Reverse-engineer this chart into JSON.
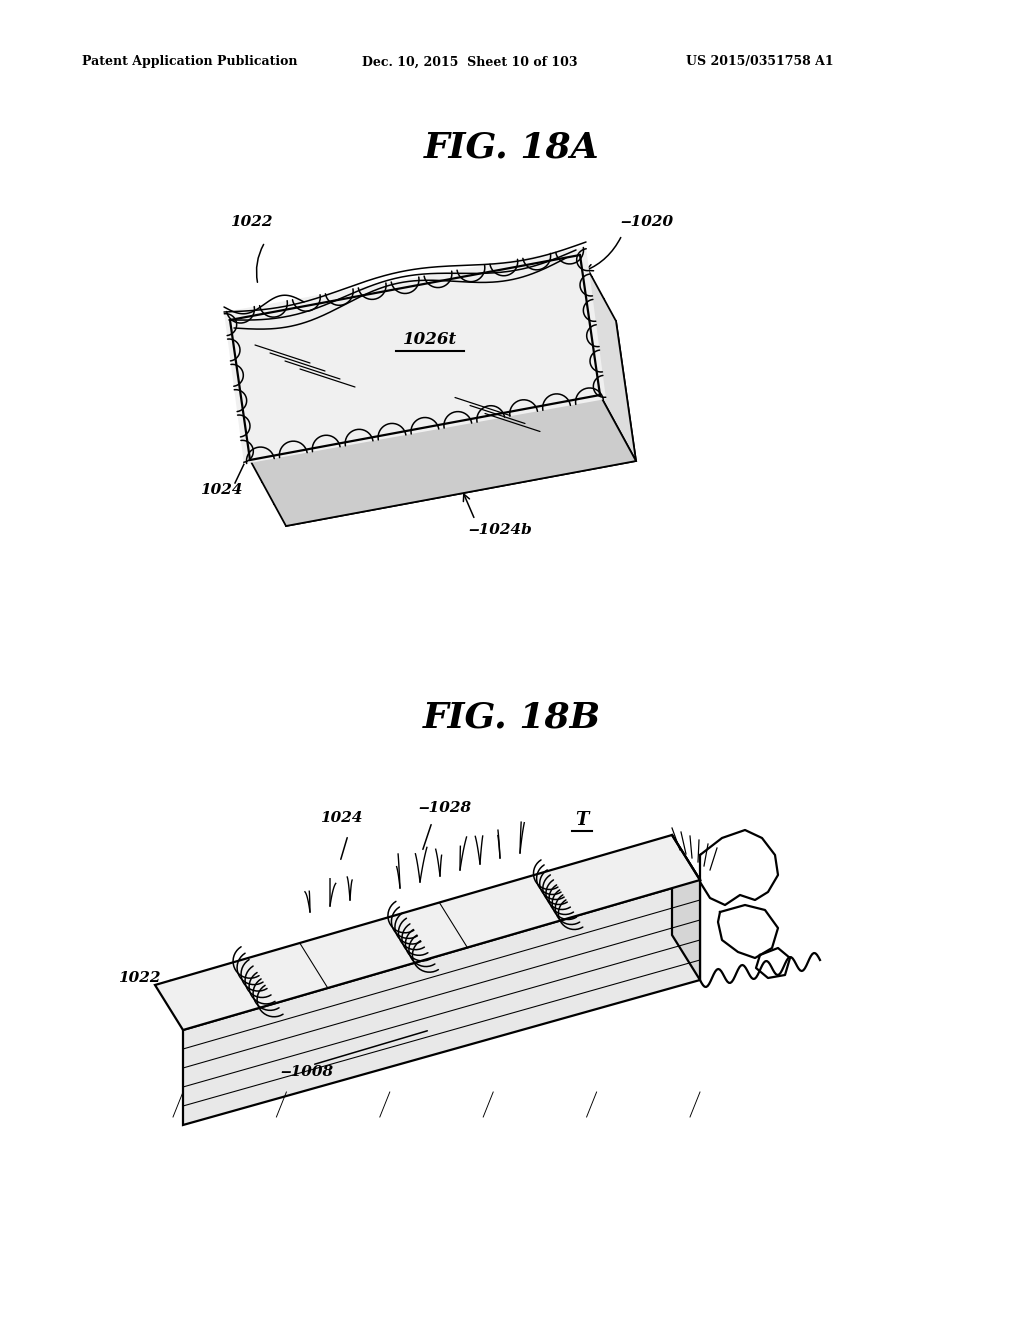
{
  "header_left": "Patent Application Publication",
  "header_mid": "Dec. 10, 2015  Sheet 10 of 103",
  "header_right": "US 2015/0351758 A1",
  "fig_title_A": "FIG. 18A",
  "fig_title_B": "FIG. 18B",
  "background_color": "#ffffff",
  "line_color": "#000000"
}
